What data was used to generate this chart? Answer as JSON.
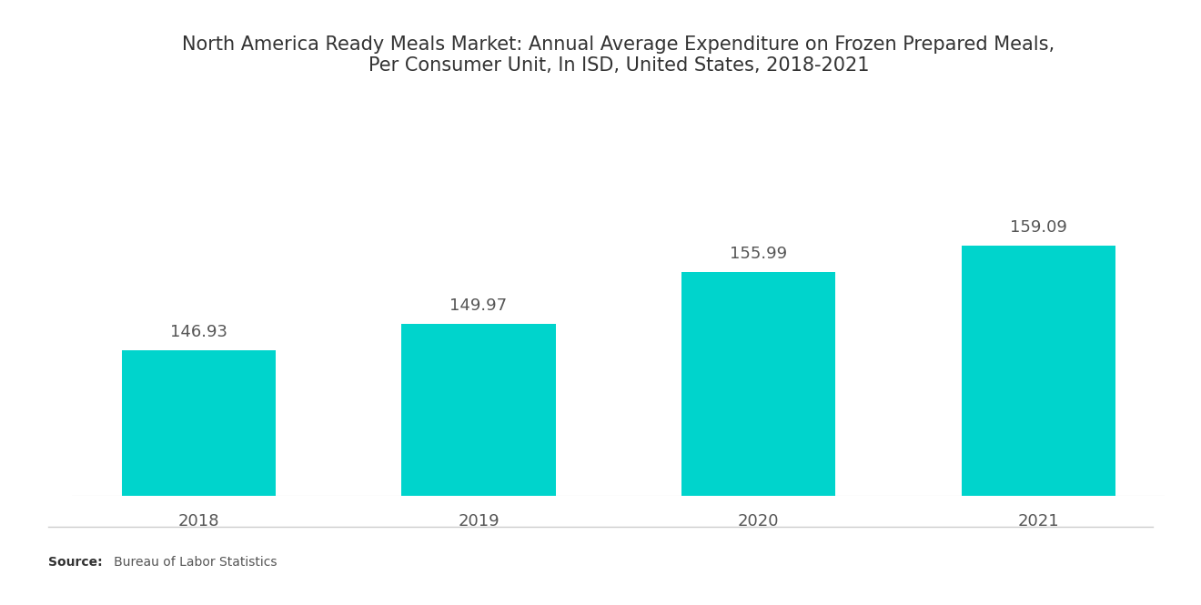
{
  "title": "North America Ready Meals Market: Annual Average Expenditure on Frozen Prepared Meals,\nPer Consumer Unit, In ISD, United States, 2018-2021",
  "categories": [
    "2018",
    "2019",
    "2020",
    "2021"
  ],
  "values": [
    146.93,
    149.97,
    155.99,
    159.09
  ],
  "bar_color": "#00D4CC",
  "background_color": "#ffffff",
  "title_fontsize": 15,
  "label_fontsize": 13,
  "tick_fontsize": 13,
  "source_bold": "Source:",
  "source_rest": "   Bureau of Labor Statistics",
  "ylim_min": 130,
  "ylim_max": 175,
  "bar_width": 0.55
}
